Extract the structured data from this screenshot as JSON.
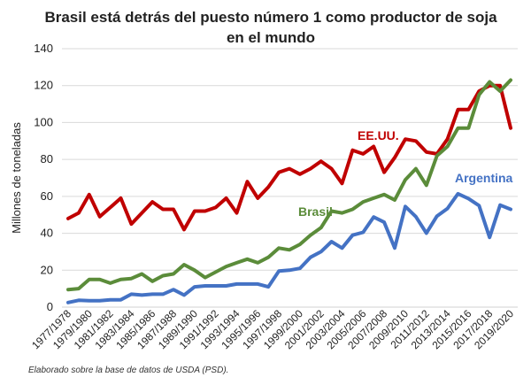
{
  "chart_data": {
    "type": "line",
    "title_lines": [
      "Brasil está detrás del puesto número 1 como productor de soja",
      "en el mundo"
    ],
    "ylabel": "Millones de toneladas",
    "ylim": [
      0,
      140
    ],
    "yticks": [
      0,
      20,
      40,
      60,
      80,
      100,
      120,
      140
    ],
    "grid": true,
    "source": "Elaborado sobre la base de datos de USDA (PSD).",
    "x": [
      "1977/1978",
      "1978/1979",
      "1979/1980",
      "1980/1981",
      "1981/1982",
      "1982/1983",
      "1983/1984",
      "1984/1985",
      "1985/1986",
      "1986/1987",
      "1987/1988",
      "1988/1989",
      "1989/1990",
      "1990/1991",
      "1991/1992",
      "1992/1993",
      "1993/1994",
      "1994/1995",
      "1995/1996",
      "1996/1997",
      "1997/1998",
      "1998/1999",
      "1999/2000",
      "2000/2001",
      "2001/2002",
      "2002/2003",
      "2003/2004",
      "2004/2005",
      "2005/2006",
      "2006/2007",
      "2007/2008",
      "2008/2009",
      "2009/2010",
      "2010/2011",
      "2011/2012",
      "2012/2013",
      "2013/2014",
      "2014/2015",
      "2015/2016",
      "2016/2017",
      "2017/2018",
      "2018/2019",
      "2019/2020"
    ],
    "xtick_labels": [
      "1977/1978",
      "1979/1980",
      "1981/1982",
      "1983/1984",
      "1985/1986",
      "1987/1988",
      "1989/1990",
      "1991/1992",
      "1993/1994",
      "1995/1996",
      "1997/1998",
      "1999/2000",
      "2001/2002",
      "2003/2004",
      "2005/2006",
      "2007/2008",
      "2009/2010",
      "2011/2012",
      "2013/2014",
      "2015/2016",
      "2017/2018",
      "2019/2020"
    ],
    "series": [
      {
        "name": "EE.UU.",
        "color": "#c00000",
        "values": [
          48,
          51,
          61,
          49,
          54,
          59,
          45,
          51,
          57,
          53,
          53,
          42,
          52,
          52,
          54,
          59,
          51,
          68,
          59,
          65,
          73,
          75,
          72,
          75,
          79,
          75,
          67,
          85,
          83,
          87,
          73,
          81,
          91,
          90,
          84,
          83,
          91,
          107,
          107,
          117,
          120,
          120,
          97
        ]
      },
      {
        "name": "Brasil",
        "color": "#5b8c3a",
        "values": [
          9.5,
          10,
          15,
          15,
          13,
          15,
          15.5,
          18,
          14,
          17,
          18,
          23,
          20,
          16,
          19,
          22,
          24,
          26,
          24,
          27,
          32,
          31,
          34,
          39,
          43,
          52,
          51,
          53,
          57,
          59,
          61,
          58,
          69,
          75,
          66,
          82,
          87,
          97,
          97,
          115,
          122,
          117,
          123
        ]
      },
      {
        "name": "Argentina",
        "color": "#4472c4",
        "values": [
          2.5,
          3.7,
          3.5,
          3.5,
          4,
          4,
          7,
          6.5,
          7,
          7,
          9.5,
          6.5,
          11,
          11.5,
          11.5,
          11.5,
          12.5,
          12.5,
          12.5,
          11,
          19.5,
          20,
          21,
          27,
          30,
          35.5,
          32,
          39,
          40.5,
          48.8,
          46,
          32,
          54.5,
          49,
          40.1,
          49.3,
          53.4,
          61.4,
          58.8,
          55,
          37.8,
          55.3,
          53
        ]
      }
    ]
  }
}
